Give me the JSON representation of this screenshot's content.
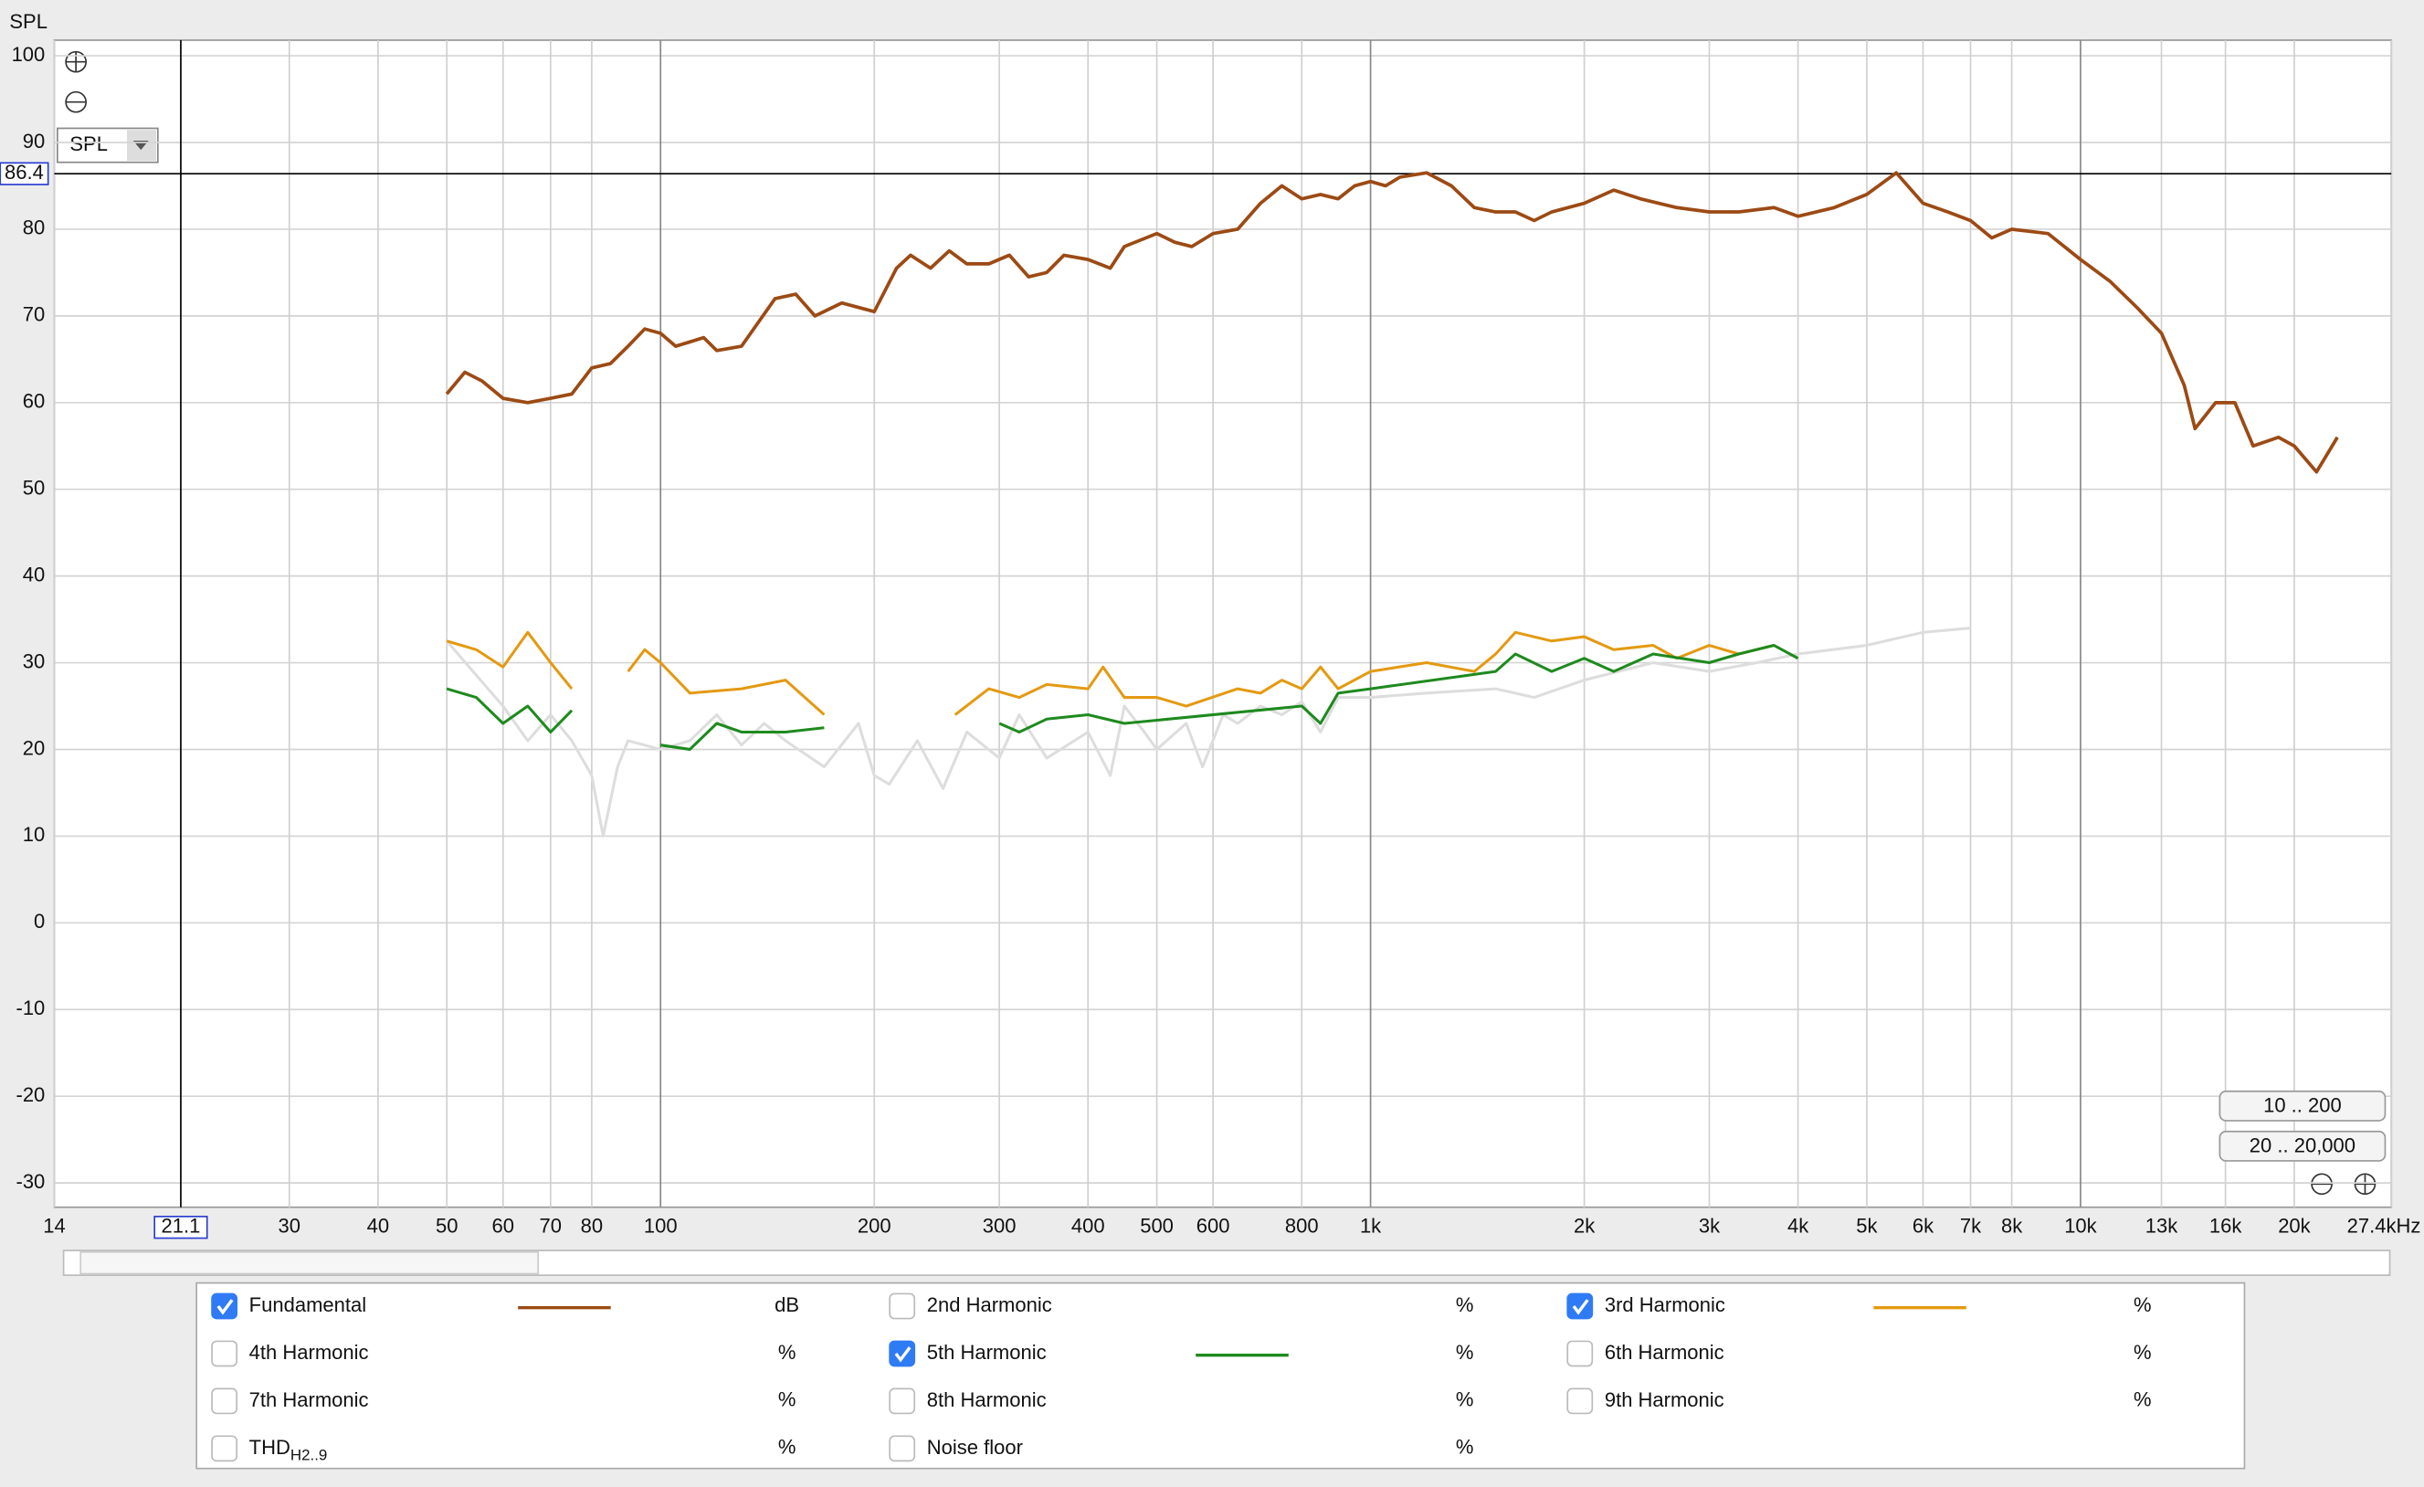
{
  "chart_data": {
    "type": "line",
    "y_label": "SPL",
    "y_selector": "SPL",
    "log_x": true,
    "grid": true,
    "xlim": [
      14,
      27400
    ],
    "ylim": [
      -32.8,
      101.8
    ],
    "xticks": [
      14,
      30,
      40,
      50,
      60,
      70,
      80,
      100,
      200,
      300,
      400,
      500,
      600,
      800,
      {
        "value": 1000,
        "label": "1k"
      },
      {
        "value": 2000,
        "label": "2k"
      },
      {
        "value": 3000,
        "label": "3k"
      },
      {
        "value": 4000,
        "label": "4k"
      },
      {
        "value": 5000,
        "label": "5k"
      },
      {
        "value": 6000,
        "label": "6k"
      },
      {
        "value": 7000,
        "label": "7k"
      },
      {
        "value": 8000,
        "label": "8k"
      },
      {
        "value": 10000,
        "label": "10k"
      },
      {
        "value": 13000,
        "label": "13k"
      },
      {
        "value": 16000,
        "label": "16k"
      },
      {
        "value": 20000,
        "label": "20k"
      },
      {
        "value": 27400,
        "label": "27.4kHz"
      }
    ],
    "yticks": [
      100,
      90,
      80,
      70,
      60,
      50,
      40,
      30,
      20,
      10,
      0,
      -10,
      -20,
      -30
    ],
    "cursor_x": 21.1,
    "cursor_y": 86.4,
    "series": [
      {
        "color": "#dddddd",
        "x": [
          50,
          60,
          65,
          70,
          75,
          80,
          83,
          87,
          90,
          100,
          110,
          120,
          130,
          140,
          150,
          170,
          190,
          200,
          210,
          230,
          250,
          270,
          300,
          320,
          350,
          400,
          430,
          450,
          480,
          500,
          550,
          580,
          620,
          650,
          700,
          750,
          800,
          850,
          900,
          1000,
          1200,
          1500,
          1700,
          2000,
          2500,
          3000,
          3500,
          4000,
          5000,
          6000,
          7000
        ],
        "values": [
          32.5,
          25,
          21,
          24,
          21,
          17,
          10,
          18,
          21,
          20,
          21,
          24,
          20.5,
          23,
          21,
          18,
          23,
          17,
          16,
          21,
          15.5,
          22,
          19,
          24,
          19,
          22,
          17,
          25,
          22,
          20,
          23,
          18,
          24,
          23,
          25,
          24,
          25.5,
          22,
          26,
          26,
          26.5,
          27,
          26,
          28,
          30,
          29,
          30,
          31,
          32,
          33.5,
          34
        ]
      },
      {
        "color": "#9c4a14",
        "x": [
          50,
          53,
          56,
          60,
          65,
          70,
          75,
          80,
          85,
          90,
          95,
          100,
          105,
          110,
          115,
          120,
          130,
          145,
          155,
          165,
          180,
          200,
          215,
          225,
          240,
          255,
          270,
          290,
          310,
          330,
          350,
          370,
          400,
          430,
          450,
          500,
          530,
          560,
          600,
          650,
          700,
          750,
          800,
          850,
          900,
          950,
          1000,
          1050,
          1100,
          1200,
          1300,
          1400,
          1500,
          1600,
          1700,
          1800,
          2000,
          2200,
          2400,
          2700,
          3000,
          3300,
          3700,
          4000,
          4500,
          5000,
          5500,
          6000,
          6500,
          7000,
          7500,
          8000,
          9000,
          10000,
          11000,
          12000,
          13000,
          14000,
          14500,
          15500,
          16500,
          17500,
          19000,
          20000,
          21500,
          23000
        ],
        "values": [
          61,
          63.5,
          62.5,
          60.5,
          60,
          60.5,
          61,
          64,
          64.5,
          66.5,
          68.5,
          68,
          66.5,
          67,
          67.5,
          66,
          66.5,
          72,
          72.5,
          70,
          71.5,
          70.5,
          75.5,
          77,
          75.5,
          77.5,
          76,
          76,
          77,
          74.5,
          75,
          77,
          76.5,
          75.5,
          78,
          79.5,
          78.5,
          78,
          79.5,
          80,
          83,
          85,
          83.5,
          84,
          83.5,
          85,
          85.5,
          85,
          86,
          86.5,
          85,
          82.5,
          82,
          82,
          81,
          82,
          83,
          84.5,
          83.5,
          82.5,
          82,
          82,
          82.5,
          81.5,
          82.5,
          84,
          86.5,
          83,
          82,
          81,
          79,
          80,
          79.5,
          76.5,
          74,
          71,
          68,
          62,
          57,
          60,
          60,
          55,
          56,
          55,
          52,
          56
        ]
      },
      {
        "color": "#e39a12",
        "x": [
          50,
          55,
          60,
          65,
          70,
          75,
          80,
          90,
          95,
          100,
          110,
          130,
          150,
          170,
          190,
          260,
          290,
          320,
          350,
          400,
          420,
          450,
          500,
          550,
          650,
          700,
          750,
          800,
          850,
          900,
          1000,
          1200,
          1400,
          1500,
          1600,
          1800,
          2000,
          2200,
          2500,
          2700,
          3000,
          3300,
          3700,
          3800
        ],
        "values": [
          32.5,
          31.5,
          29.5,
          33.5,
          30,
          27,
          null,
          29,
          31.5,
          30,
          26.5,
          27,
          28,
          24,
          null,
          24,
          27,
          26,
          27.5,
          27,
          29.5,
          26,
          26,
          25,
          27,
          26.5,
          28,
          27,
          29.5,
          27,
          29,
          30,
          29,
          31,
          33.5,
          32.5,
          33,
          31.5,
          32,
          30.5,
          32,
          31,
          32,
          null
        ]
      },
      {
        "color": "#1e8a1e",
        "x": [
          50,
          55,
          60,
          65,
          70,
          75,
          80,
          100,
          110,
          120,
          130,
          150,
          170,
          180,
          300,
          320,
          350,
          400,
          450,
          800,
          850,
          900,
          1000,
          1500,
          1600,
          1800,
          2000,
          2200,
          2500,
          3000,
          3300,
          3700,
          4000
        ],
        "values": [
          27,
          26,
          23,
          25,
          22,
          24.5,
          null,
          20.5,
          20,
          23,
          22,
          22,
          22.5,
          null,
          23,
          22,
          23.5,
          24,
          23,
          25,
          23,
          26.5,
          27,
          29,
          31,
          29,
          30.5,
          29,
          31,
          30,
          31,
          32,
          30.5
        ]
      }
    ],
    "legend": [
      {
        "label": "Fundamental",
        "unit": "dB",
        "checked": true,
        "color": "#9c4a14"
      },
      {
        "label": "2nd Harmonic",
        "unit": "%",
        "checked": false,
        "color": "#c0140c"
      },
      {
        "label": "3rd Harmonic",
        "unit": "%",
        "checked": true,
        "color": "#e39a12"
      },
      {
        "label": "4th Harmonic",
        "unit": "%",
        "checked": false,
        "color": "#e0b800"
      },
      {
        "label": "5th Harmonic",
        "unit": "%",
        "checked": true,
        "color": "#1e8a1e"
      },
      {
        "label": "6th Harmonic",
        "unit": "%",
        "checked": false,
        "color": "#2a4fa0"
      },
      {
        "label": "7th Harmonic",
        "unit": "%",
        "checked": false,
        "color": "#b030b8"
      },
      {
        "label": "8th Harmonic",
        "unit": "%",
        "checked": false,
        "color": "#666666"
      },
      {
        "label": "9th Harmonic",
        "unit": "%",
        "checked": false,
        "color": "#129a9a"
      },
      {
        "label": "THD",
        "sub": "H2..9",
        "unit": "%",
        "checked": false,
        "color": "#333333"
      },
      {
        "label": "Noise floor",
        "unit": "%",
        "checked": false,
        "color": "#7a2a10"
      }
    ],
    "buttons": [
      "10 .. 200",
      "20 .. 20,000"
    ]
  }
}
